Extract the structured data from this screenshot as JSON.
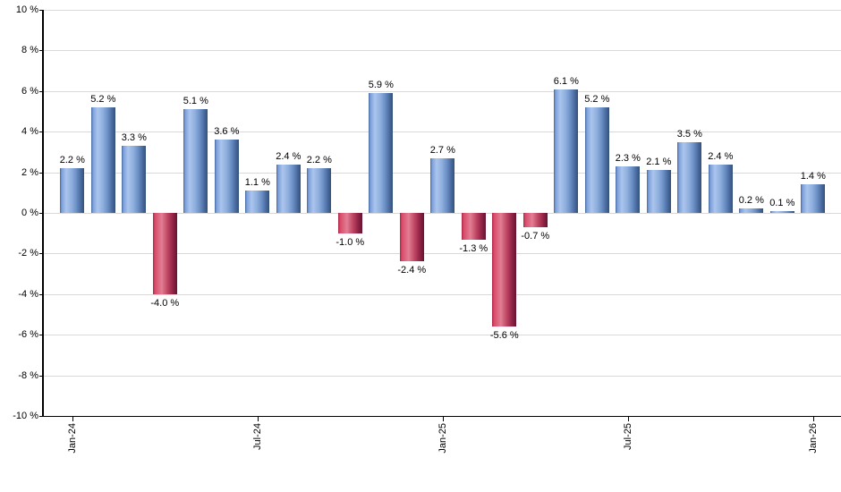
{
  "chart_data": {
    "type": "bar",
    "title": "",
    "xlabel": "",
    "ylabel": "",
    "ylim": [
      -10,
      10
    ],
    "ytick_step": 2,
    "ytick_labels": [
      "10 %",
      "8 %",
      "6 %",
      "4 %",
      "2 %",
      "0 %",
      "-2 %",
      "-4 %",
      "-6 %",
      "-8 %",
      "-10 %"
    ],
    "grid": "horizontal",
    "legend": "none",
    "bar_count": 25,
    "values": [
      2.2,
      5.2,
      3.3,
      -4.0,
      5.1,
      3.6,
      1.1,
      2.4,
      2.2,
      -1.0,
      5.9,
      -2.4,
      2.7,
      -1.3,
      -5.6,
      -0.7,
      6.1,
      5.2,
      2.3,
      2.1,
      3.5,
      2.4,
      0.2,
      0.1,
      1.4
    ],
    "value_labels": [
      "2.2 %",
      "5.2 %",
      "3.3 %",
      "-4.0 %",
      "5.1 %",
      "3.6 %",
      "1.1 %",
      "2.4 %",
      "2.2 %",
      "-1.0 %",
      "5.9 %",
      "-2.4 %",
      "2.7 %",
      "-1.3 %",
      "-5.6 %",
      "-0.7 %",
      "6.1 %",
      "5.2 %",
      "2.3 %",
      "2.1 %",
      "3.5 %",
      "2.4 %",
      "0.2 %",
      "0.1 %",
      "1.4 %"
    ],
    "xticks": [
      {
        "index": 0,
        "label": "Jan-24"
      },
      {
        "index": 6,
        "label": "Jul-24"
      },
      {
        "index": 12,
        "label": "Jan-25"
      },
      {
        "index": 18,
        "label": "Jul-25"
      },
      {
        "index": 24,
        "label": "Jan-26"
      }
    ],
    "colors": {
      "positive_bar_main": "#8fafde",
      "positive_bar_dark": "#345079",
      "positive_bar_highlight": "#abc5ed",
      "negative_bar_main": "#c04763",
      "negative_bar_dark": "#651430",
      "negative_bar_highlight": "#e27e94",
      "gridline": "#d9d9d9",
      "axis": "#000000",
      "text": "#000000",
      "background": "#ffffff"
    }
  }
}
